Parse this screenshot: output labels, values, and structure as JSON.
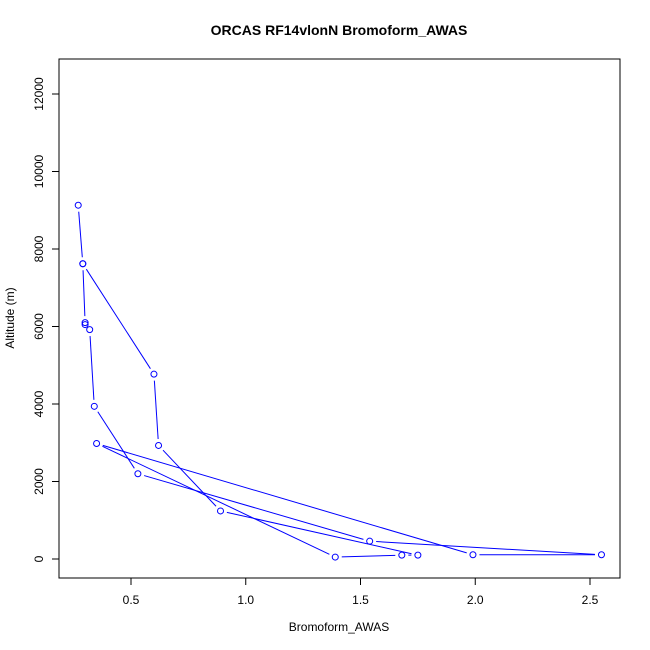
{
  "chart_data": {
    "type": "line",
    "title": "ORCAS RF14vlonN Bromoform_AWAS",
    "xlabel": "Bromoform_AWAS",
    "ylabel": "Altitude (m)",
    "xlim": [
      0.26,
      2.55
    ],
    "ylim": [
      0,
      12500
    ],
    "x_ticks": [
      0.5,
      1.0,
      1.5,
      2.0,
      2.5
    ],
    "x_tick_labels": [
      "0.5",
      "1.0",
      "1.5",
      "2.0",
      "2.5"
    ],
    "y_ticks": [
      0,
      2000,
      4000,
      6000,
      8000,
      10000,
      12000
    ],
    "y_tick_labels": [
      "0",
      "2000",
      "4000",
      "6000",
      "8000",
      "10000",
      "12000"
    ],
    "grid": false,
    "series": [
      {
        "color": "#0000ff",
        "marker": "open-circle",
        "points": [
          {
            "x": 0.27,
            "y": 9130
          },
          {
            "x": 0.29,
            "y": 7620
          },
          {
            "x": 0.3,
            "y": 6100
          },
          {
            "x": 0.3,
            "y": 6050
          },
          {
            "x": 0.32,
            "y": 5920
          },
          {
            "x": 0.34,
            "y": 3940
          },
          {
            "x": 0.53,
            "y": 2200
          },
          {
            "x": 1.54,
            "y": 460
          },
          {
            "x": 2.55,
            "y": 110
          },
          {
            "x": 1.99,
            "y": 110
          },
          {
            "x": 0.35,
            "y": 2980
          },
          {
            "x": 1.39,
            "y": 50
          },
          {
            "x": 1.68,
            "y": 100
          },
          {
            "x": 1.75,
            "y": 100
          },
          {
            "x": 0.89,
            "y": 1240
          },
          {
            "x": 0.62,
            "y": 2930
          },
          {
            "x": 0.6,
            "y": 4770
          },
          {
            "x": 0.29,
            "y": 7620
          }
        ]
      }
    ]
  }
}
